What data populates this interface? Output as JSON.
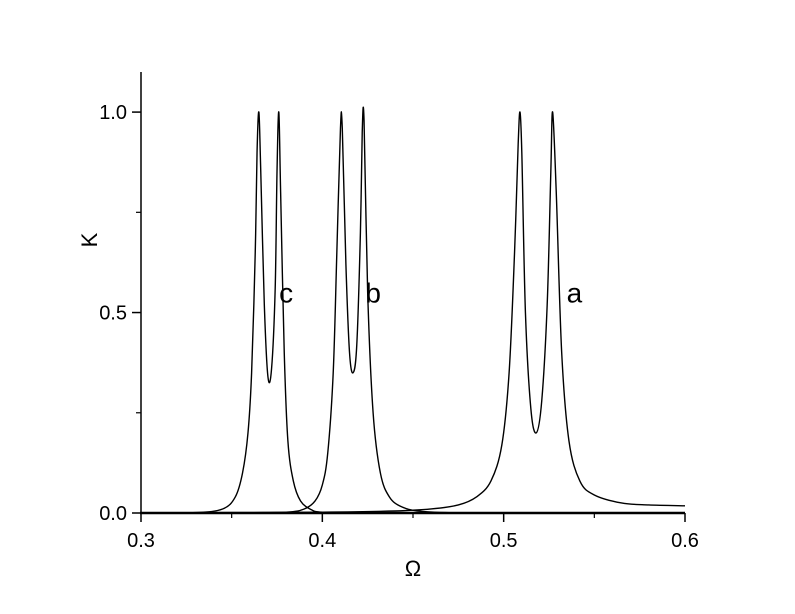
{
  "chart_data": {
    "type": "line",
    "title": "",
    "xlabel": "Ω",
    "ylabel": "K",
    "xlim": [
      0.3,
      0.6
    ],
    "ylim": [
      0.0,
      1.1
    ],
    "xticks": [
      "0.3",
      "0.4",
      "0.5",
      "0.6"
    ],
    "yticks": [
      "0.0",
      "0.5",
      "1.0"
    ],
    "grid": false,
    "line_color": "#000000",
    "series": [
      {
        "label": "c",
        "x": [
          0.3,
          0.33,
          0.345,
          0.352,
          0.356,
          0.359,
          0.361,
          0.363,
          0.364,
          0.365,
          0.366,
          0.368,
          0.37,
          0.372,
          0.374,
          0.375,
          0.376,
          0.377,
          0.379,
          0.381,
          0.384,
          0.388,
          0.394,
          0.4,
          0.42,
          0.45,
          0.5,
          0.55,
          0.6
        ],
        "y": [
          0.0,
          0.001,
          0.01,
          0.04,
          0.1,
          0.2,
          0.35,
          0.65,
          0.9,
          1.0,
          0.86,
          0.52,
          0.34,
          0.36,
          0.56,
          0.85,
          1.0,
          0.8,
          0.4,
          0.18,
          0.08,
          0.03,
          0.008,
          0.002,
          0.0,
          0.0,
          0.0,
          0.0,
          0.0
        ]
      },
      {
        "label": "b",
        "x": [
          0.3,
          0.35,
          0.38,
          0.39,
          0.396,
          0.4,
          0.403,
          0.406,
          0.408,
          0.41,
          0.411,
          0.413,
          0.415,
          0.417,
          0.419,
          0.421,
          0.422,
          0.423,
          0.425,
          0.428,
          0.432,
          0.437,
          0.444,
          0.455,
          0.48,
          0.52,
          0.6
        ],
        "y": [
          0.0,
          0.0,
          0.002,
          0.01,
          0.03,
          0.07,
          0.15,
          0.35,
          0.65,
          0.96,
          0.96,
          0.62,
          0.4,
          0.35,
          0.42,
          0.7,
          0.95,
          0.98,
          0.55,
          0.25,
          0.1,
          0.04,
          0.015,
          0.004,
          0.0,
          0.0,
          0.0
        ]
      },
      {
        "label": "a",
        "x": [
          0.3,
          0.35,
          0.4,
          0.44,
          0.46,
          0.475,
          0.485,
          0.493,
          0.499,
          0.503,
          0.506,
          0.508,
          0.509,
          0.51,
          0.512,
          0.515,
          0.518,
          0.521,
          0.524,
          0.526,
          0.527,
          0.529,
          0.532,
          0.536,
          0.542,
          0.55,
          0.565,
          0.58,
          0.6
        ],
        "y": [
          0.0,
          0.001,
          0.002,
          0.005,
          0.01,
          0.02,
          0.04,
          0.08,
          0.17,
          0.35,
          0.65,
          0.92,
          1.0,
          0.9,
          0.5,
          0.26,
          0.2,
          0.28,
          0.52,
          0.85,
          1.0,
          0.8,
          0.4,
          0.18,
          0.08,
          0.045,
          0.025,
          0.02,
          0.018
        ]
      }
    ]
  }
}
